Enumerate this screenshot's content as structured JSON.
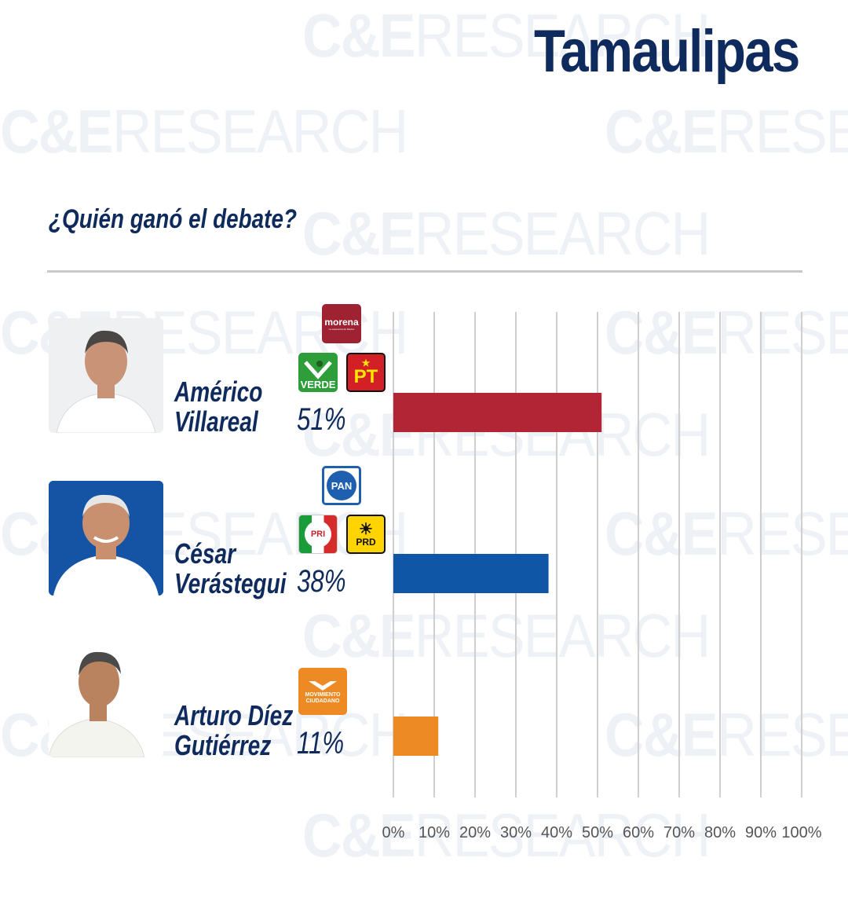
{
  "title": "Tamaulipas",
  "question": "¿Quién ganó el debate?",
  "watermark": {
    "bold": "C&E",
    "light": "RESEARCH"
  },
  "colors": {
    "navy": "#0f2a5c",
    "red": "#b12534",
    "blue": "#0f57a6",
    "orange": "#ee8a24",
    "grid": "#cfcfcf"
  },
  "candidates": [
    {
      "name_line1": "Américo",
      "name_line2": "Villareal",
      "pct_label": "51%",
      "party_logos": [
        {
          "icon": "morena-logo",
          "text": "morena",
          "subtext": "La esperanza de México"
        },
        {
          "icon": "pvem-logo",
          "text": "VERDE"
        },
        {
          "icon": "pt-logo",
          "text": "PT"
        }
      ]
    },
    {
      "name_line1": "César",
      "name_line2": "Verástegui",
      "pct_label": "38%",
      "party_logos": [
        {
          "icon": "pan-logo",
          "text": "PAN"
        },
        {
          "icon": "pri-logo",
          "text": "PRI"
        },
        {
          "icon": "prd-logo",
          "text": "PRD"
        }
      ]
    },
    {
      "name_line1": "Arturo Díez",
      "name_line2": "Gutiérrez",
      "pct_label": "11%",
      "party_logos": [
        {
          "icon": "movimiento-ciudadano-logo",
          "text": "MOVIMIENTO CIUDADANO"
        }
      ]
    }
  ],
  "chart_data": {
    "type": "bar",
    "orientation": "horizontal",
    "categories": [
      "Américo Villareal",
      "César Verástegui",
      "Arturo Díez Gutiérrez"
    ],
    "values": [
      51,
      38,
      11
    ],
    "bar_colors": [
      "#b12534",
      "#0f57a6",
      "#ee8a24"
    ],
    "xlim": [
      0,
      100
    ],
    "x_ticks": [
      "0%",
      "10%",
      "20%",
      "30%",
      "40%",
      "50%",
      "60%",
      "70%",
      "80%",
      "90%",
      "100%"
    ],
    "grid": true
  }
}
